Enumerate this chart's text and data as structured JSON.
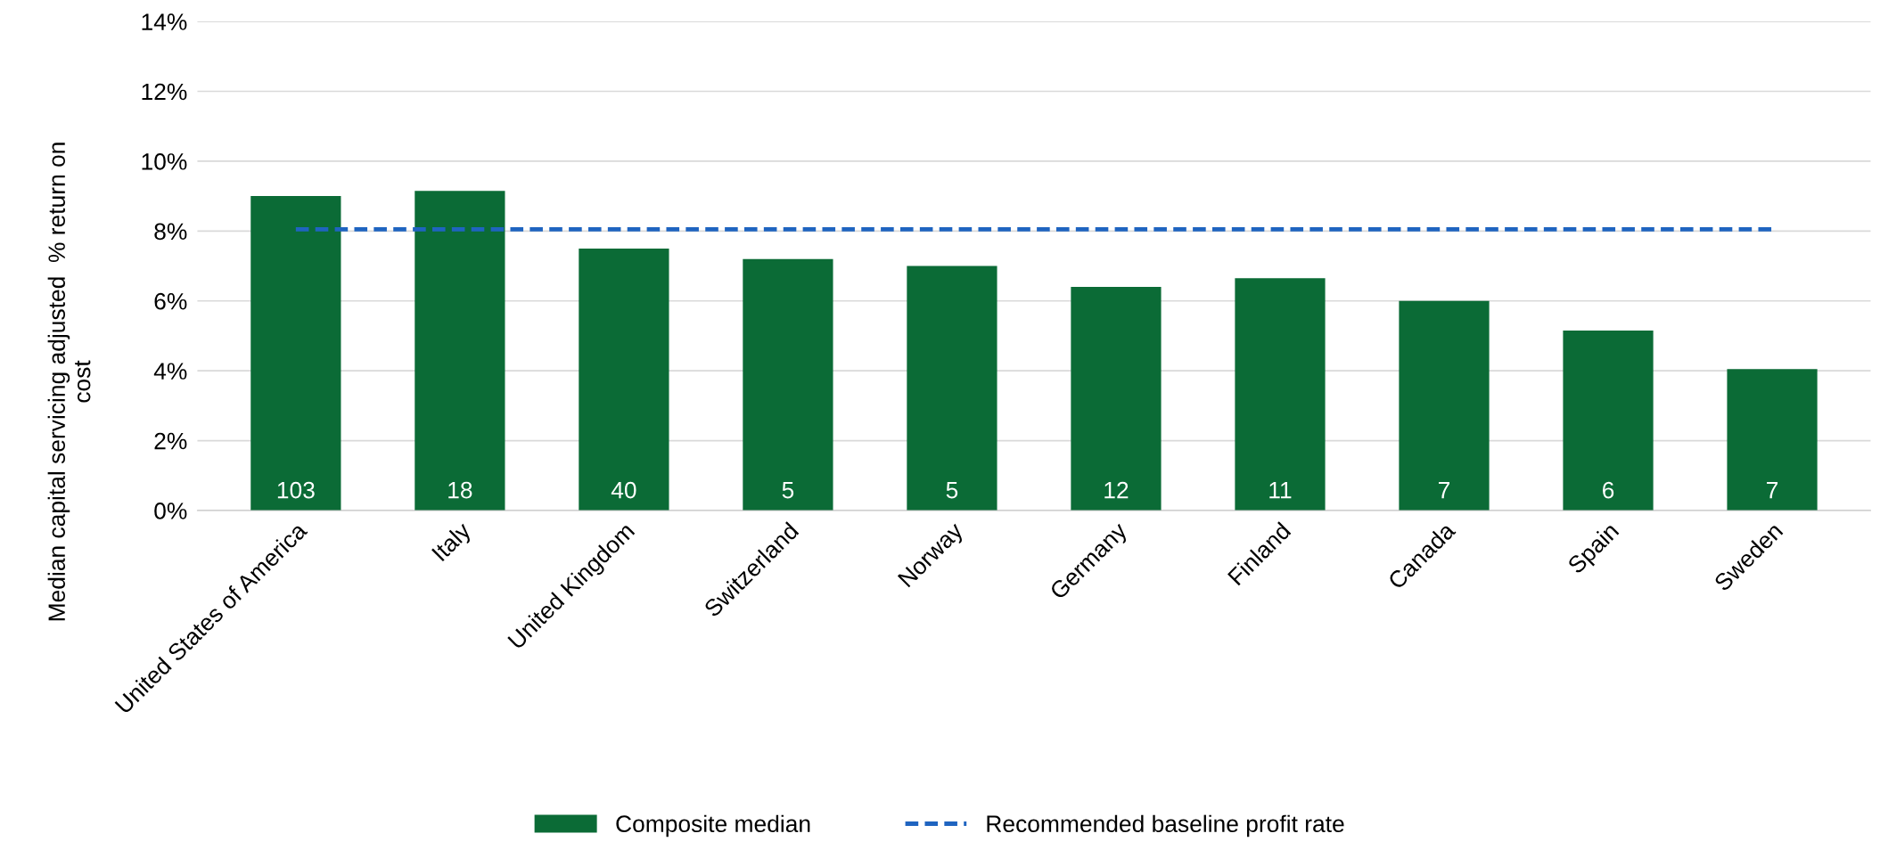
{
  "chart_data": {
    "type": "bar",
    "ylabel": "Median capital servicing adjusted  % return on cost",
    "categories": [
      "United States of America",
      "Italy",
      "United Kingdom",
      "Switzerland",
      "Norway",
      "Germany",
      "Finland",
      "Canada",
      "Spain",
      "Sweden"
    ],
    "series": [
      {
        "name": "Composite median",
        "color": "#0b6b36",
        "values": [
          9.0,
          9.15,
          7.5,
          7.2,
          7.0,
          6.4,
          6.65,
          6.0,
          5.15,
          4.05
        ]
      },
      {
        "name": "Recommended baseline profit rate",
        "type": "line",
        "color": "#1f64c0",
        "line_style": "dashed",
        "values": [
          8.05,
          8.05,
          8.05,
          8.05,
          8.05,
          8.05,
          8.05,
          8.05,
          8.05,
          8.05
        ]
      }
    ],
    "ylim": [
      0,
      14
    ],
    "yticks": [
      {
        "value": 0,
        "label": "0%"
      },
      {
        "value": 2,
        "label": "2%"
      },
      {
        "value": 4,
        "label": "4%"
      },
      {
        "value": 6,
        "label": "6%"
      },
      {
        "value": 8,
        "label": "8%"
      },
      {
        "value": 10,
        "label": "10%"
      },
      {
        "value": 12,
        "label": "12%"
      },
      {
        "value": 14,
        "label": "14%"
      }
    ],
    "annotations": [
      {
        "text": "103",
        "x": "United States of America",
        "y": 0
      },
      {
        "text": "18",
        "x": "Italy",
        "y": 0
      },
      {
        "text": "40",
        "x": "United Kingdom",
        "y": 0
      },
      {
        "text": "5",
        "x": "Switzerland",
        "y": 0
      },
      {
        "text": "5",
        "x": "Norway",
        "y": 0
      },
      {
        "text": "12",
        "x": "Germany",
        "y": 0
      },
      {
        "text": "11",
        "x": "Finland",
        "y": 0
      },
      {
        "text": "7",
        "x": "Canada",
        "y": 0
      },
      {
        "text": "6",
        "x": "Spain",
        "y": 0
      },
      {
        "text": "7",
        "x": "Sweden",
        "y": 0
      }
    ],
    "grid": "y",
    "legend": "bottom"
  }
}
